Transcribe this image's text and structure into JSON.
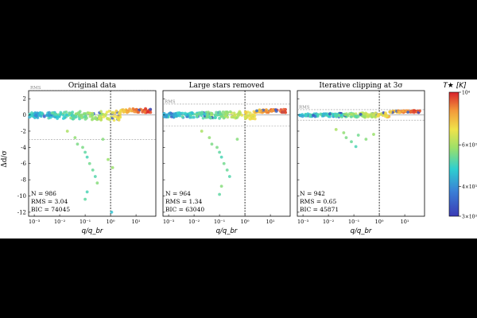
{
  "figure": {
    "ylabel": "Δd/σ",
    "xlabel": "q/q_br",
    "colorbar": {
      "label": "T★ [K]",
      "ticks": [
        "10⁴",
        "6×10³",
        "4×10³",
        "3×10³"
      ],
      "tick_values": [
        10000,
        6000,
        4000,
        3000
      ]
    },
    "rms_label": "RMS"
  },
  "chart_data": [
    {
      "type": "scatter",
      "title": "Original data",
      "xscale": "log",
      "xlim": [
        0.0006,
        60
      ],
      "ylim": [
        -12.5,
        3
      ],
      "yticks": [
        2,
        0,
        -2,
        -4,
        -6,
        -8,
        -10,
        -12
      ],
      "xticks": [
        0.001,
        0.01,
        0.1,
        1,
        10
      ],
      "xtick_labels": [
        "10⁻³",
        "10⁻²",
        "10⁻¹",
        "10⁰",
        "10¹"
      ],
      "rms_band": 3.04,
      "vline_x": 1,
      "stats": [
        "N = 986",
        "RMS = 3.04",
        "BIC = 74045"
      ],
      "outliers": [
        {
          "x": 0.08,
          "y": -4.0,
          "t": 5500
        },
        {
          "x": 0.1,
          "y": -4.6,
          "t": 5200
        },
        {
          "x": 0.12,
          "y": -5.2,
          "t": 5000
        },
        {
          "x": 0.15,
          "y": -6.0,
          "t": 5400
        },
        {
          "x": 0.2,
          "y": -6.8,
          "t": 5300
        },
        {
          "x": 0.25,
          "y": -7.6,
          "t": 5100
        },
        {
          "x": 0.3,
          "y": -8.4,
          "t": 5600
        },
        {
          "x": 0.12,
          "y": -9.5,
          "t": 5000
        },
        {
          "x": 0.1,
          "y": -10.4,
          "t": 5200
        },
        {
          "x": 0.8,
          "y": -5.5,
          "t": 5800
        },
        {
          "x": 1.1,
          "y": -12.0,
          "t": 4600
        },
        {
          "x": 0.04,
          "y": -2.8,
          "t": 5700
        },
        {
          "x": 0.05,
          "y": -3.6,
          "t": 5500
        },
        {
          "x": 0.5,
          "y": -3.0,
          "t": 5600
        },
        {
          "x": 1.2,
          "y": -6.5,
          "t": 5800
        },
        {
          "x": 0.02,
          "y": -2.0,
          "t": 6000
        }
      ]
    },
    {
      "type": "scatter",
      "title": "Large stars removed",
      "xscale": "log",
      "xlim": [
        0.0006,
        60
      ],
      "ylim": [
        -12.5,
        3
      ],
      "xticks": [
        0.001,
        0.01,
        0.1,
        1,
        10
      ],
      "xtick_labels": [
        "10⁻³",
        "10⁻²",
        "10⁻¹",
        "10⁰",
        "10¹"
      ],
      "rms_band": 1.34,
      "vline_x": 1,
      "stats": [
        "N = 964",
        "RMS = 1.34",
        "BIC = 63040"
      ],
      "outliers": [
        {
          "x": 0.08,
          "y": -4.0,
          "t": 5500
        },
        {
          "x": 0.1,
          "y": -4.6,
          "t": 5200
        },
        {
          "x": 0.12,
          "y": -5.2,
          "t": 5000
        },
        {
          "x": 0.15,
          "y": -6.0,
          "t": 5400
        },
        {
          "x": 0.2,
          "y": -6.8,
          "t": 5300
        },
        {
          "x": 0.25,
          "y": -7.6,
          "t": 5100
        },
        {
          "x": 0.12,
          "y": -8.8,
          "t": 5600
        },
        {
          "x": 0.1,
          "y": -9.8,
          "t": 5200
        },
        {
          "x": 0.04,
          "y": -2.8,
          "t": 5700
        },
        {
          "x": 0.05,
          "y": -3.6,
          "t": 5500
        },
        {
          "x": 0.5,
          "y": -3.0,
          "t": 5600
        },
        {
          "x": 0.02,
          "y": -2.0,
          "t": 6000
        }
      ]
    },
    {
      "type": "scatter",
      "title": "Iterative clipping at 3σ",
      "xscale": "log",
      "xlim": [
        0.0006,
        60
      ],
      "ylim": [
        -12.5,
        3
      ],
      "xticks": [
        0.001,
        0.01,
        0.1,
        1,
        10
      ],
      "xtick_labels": [
        "10⁻³",
        "10⁻²",
        "10⁻¹",
        "10⁰",
        "10¹"
      ],
      "rms_band": 0.65,
      "vline_x": 1,
      "stats": [
        "N = 942",
        "RMS = 0.65",
        "BIC = 45871"
      ],
      "outliers": [
        {
          "x": 0.04,
          "y": -2.2,
          "t": 5700
        },
        {
          "x": 0.05,
          "y": -2.8,
          "t": 5500
        },
        {
          "x": 0.08,
          "y": -3.3,
          "t": 5300
        },
        {
          "x": 0.12,
          "y": -3.9,
          "t": 5000
        },
        {
          "x": 0.15,
          "y": -2.5,
          "t": 5400
        },
        {
          "x": 0.3,
          "y": -3.0,
          "t": 5600
        },
        {
          "x": 0.02,
          "y": -1.8,
          "t": 6000
        },
        {
          "x": 0.6,
          "y": -2.4,
          "t": 5800
        }
      ]
    }
  ]
}
